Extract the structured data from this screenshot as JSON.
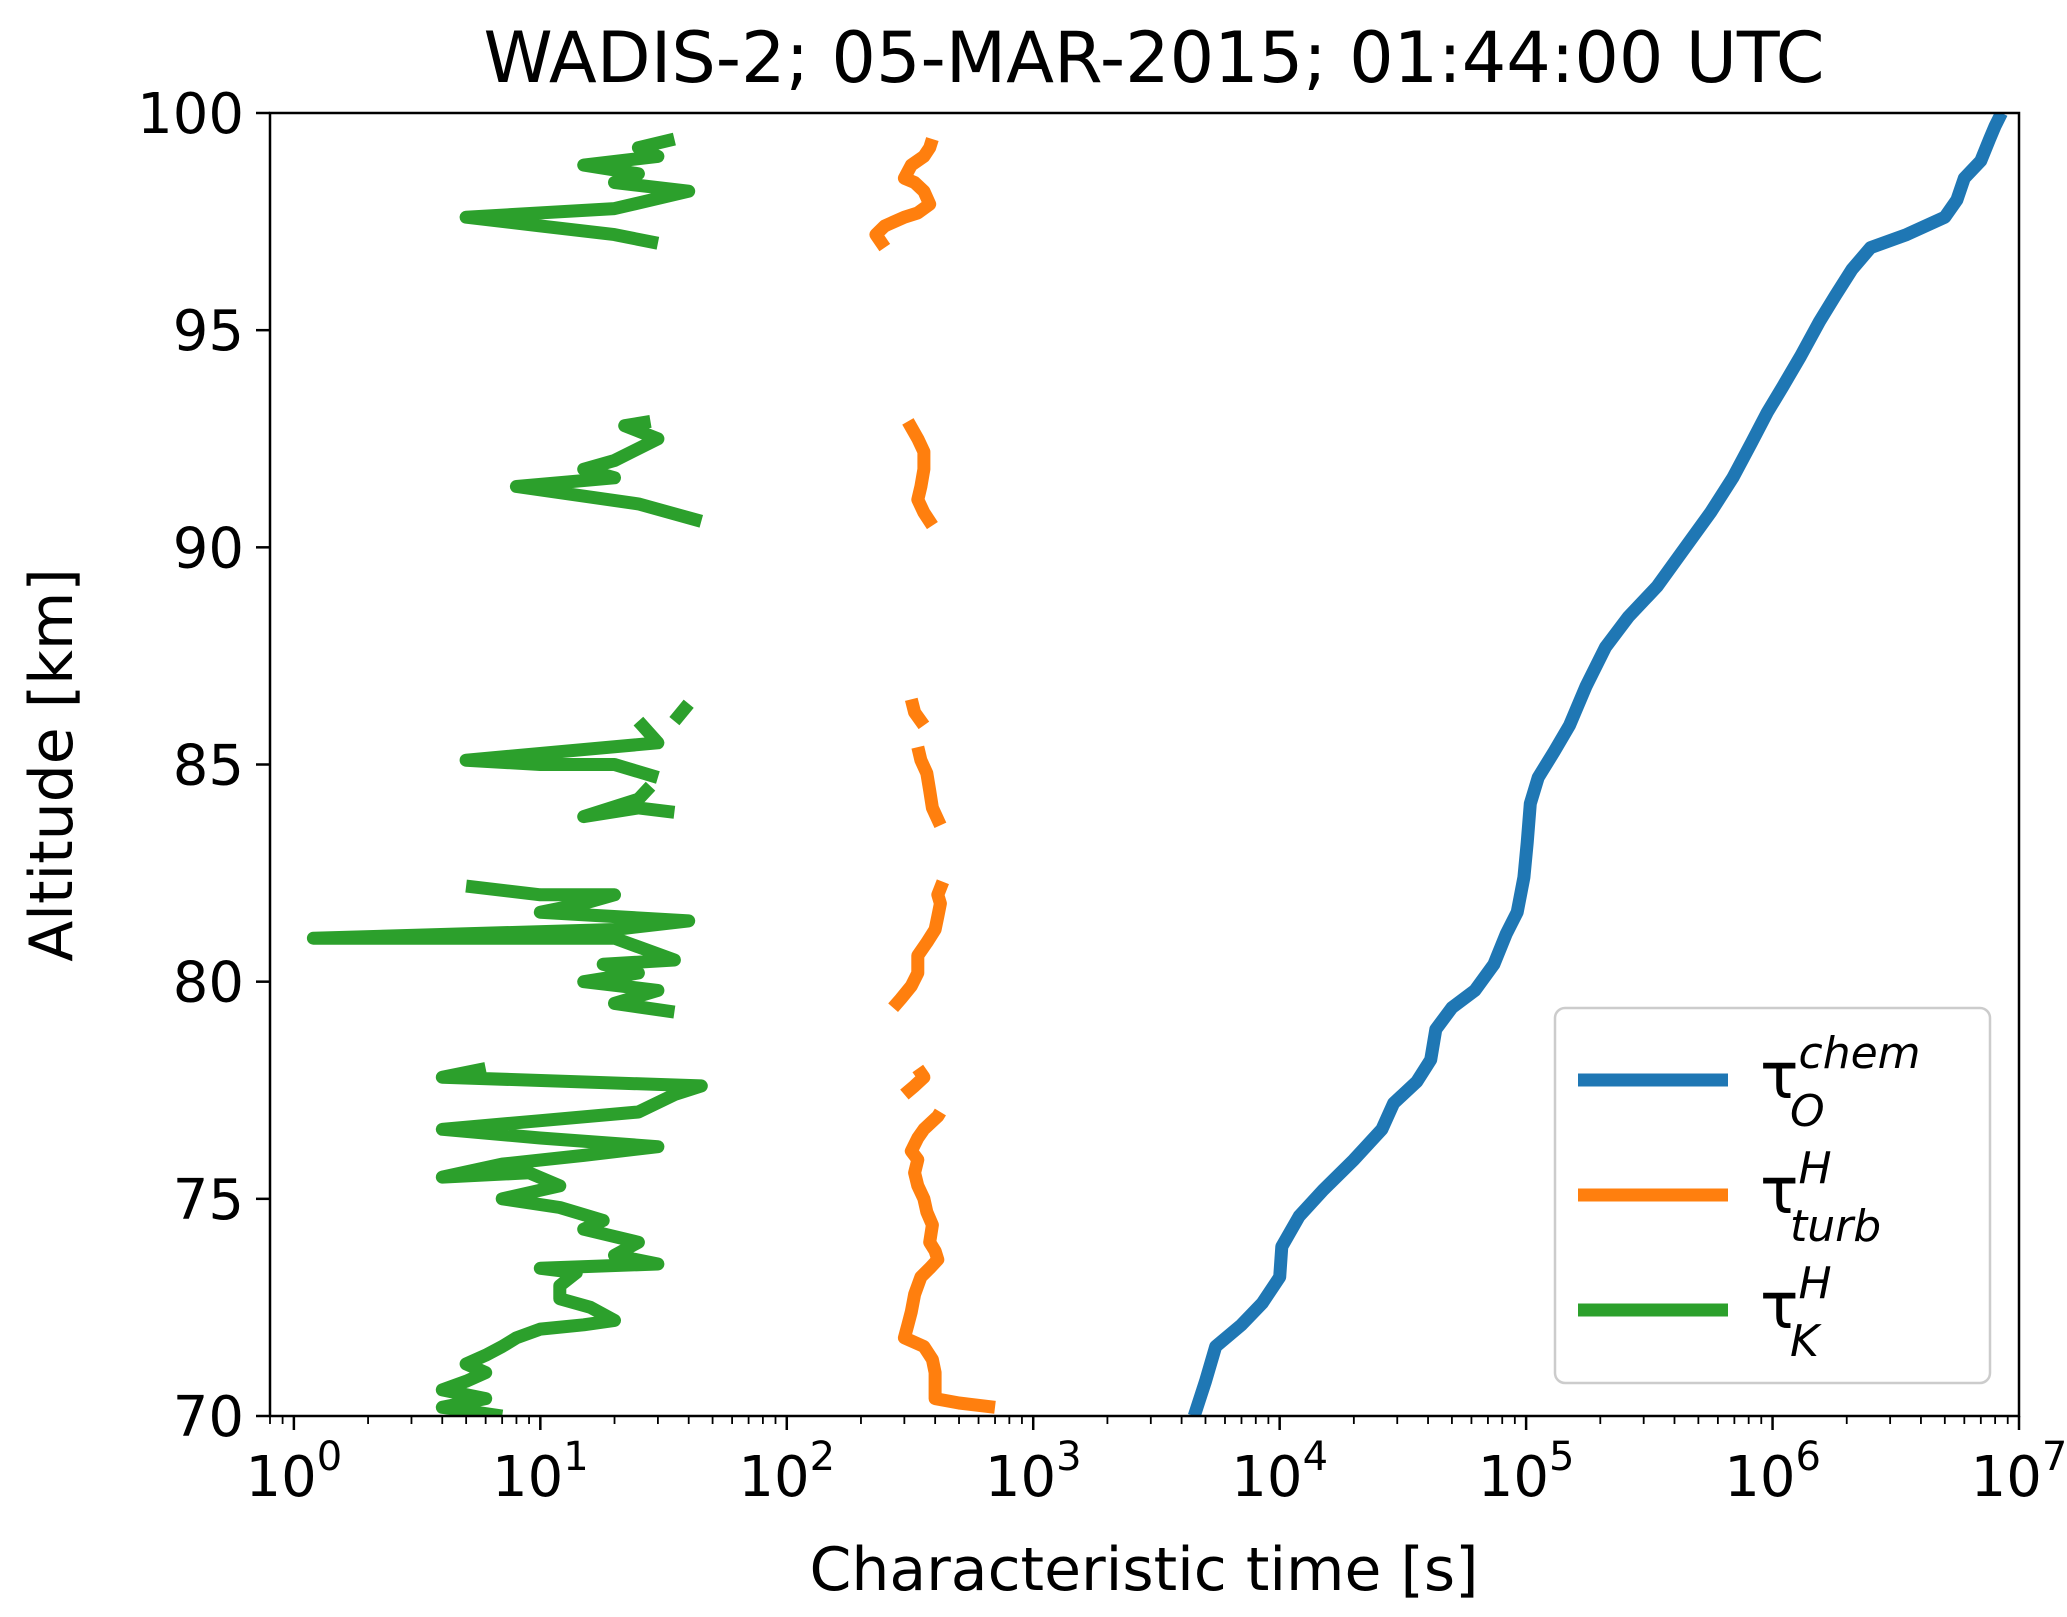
{
  "chart_data": {
    "type": "line",
    "title": "WADIS-2; 05-MAR-2015; 01:44:00 UTC",
    "xlabel": "Characteristic time [s]",
    "ylabel": "Altitude [km]",
    "xscale": "log",
    "xlim": [
      0.8,
      10000000
    ],
    "ylim": [
      70,
      100
    ],
    "x_ticks": [
      {
        "value": 1,
        "base": "10",
        "exp": "0"
      },
      {
        "value": 10,
        "base": "10",
        "exp": "1"
      },
      {
        "value": 100,
        "base": "10",
        "exp": "2"
      },
      {
        "value": 1000,
        "base": "10",
        "exp": "3"
      },
      {
        "value": 10000,
        "base": "10",
        "exp": "4"
      },
      {
        "value": 100000,
        "base": "10",
        "exp": "5"
      },
      {
        "value": 1000000,
        "base": "10",
        "exp": "6"
      },
      {
        "value": 10000000,
        "base": "10",
        "exp": "7"
      }
    ],
    "y_ticks": [
      70,
      75,
      80,
      85,
      90,
      95,
      100
    ],
    "y_tick_labels": [
      "70",
      "75",
      "80",
      "85",
      "90",
      "95",
      "100"
    ],
    "grid": false,
    "legend_position": "bottom-right",
    "series": [
      {
        "key": "tau_chem",
        "legend": {
          "symbol": "τ",
          "sup": "chem",
          "sub": "O"
        },
        "color": "#1f77b4",
        "segments": [
          [
            [
              4500,
              70.0
            ],
            [
              5000,
              70.8
            ],
            [
              5500,
              71.6
            ],
            [
              7000,
              72.1
            ],
            [
              8500,
              72.6
            ],
            [
              10000,
              73.2
            ],
            [
              10200,
              73.9
            ],
            [
              12000,
              74.6
            ],
            [
              15000,
              75.2
            ],
            [
              20000,
              75.9
            ],
            [
              26000,
              76.6
            ],
            [
              29000,
              77.2
            ],
            [
              36000,
              77.7
            ],
            [
              41000,
              78.2
            ],
            [
              43000,
              78.9
            ],
            [
              50000,
              79.4
            ],
            [
              62000,
              79.8
            ],
            [
              74000,
              80.4
            ],
            [
              83000,
              81.1
            ],
            [
              92000,
              81.6
            ],
            [
              98000,
              82.4
            ],
            [
              101000,
              83.2
            ],
            [
              104000,
              84.1
            ],
            [
              112000,
              84.7
            ],
            [
              130000,
              85.3
            ],
            [
              150000,
              85.9
            ],
            [
              175000,
              86.8
            ],
            [
              210000,
              87.7
            ],
            [
              260000,
              88.4
            ],
            [
              340000,
              89.1
            ],
            [
              430000,
              89.9
            ],
            [
              560000,
              90.8
            ],
            [
              690000,
              91.6
            ],
            [
              820000,
              92.4
            ],
            [
              950000,
              93.1
            ],
            [
              1100000,
              93.7
            ],
            [
              1300000,
              94.4
            ],
            [
              1550000,
              95.2
            ],
            [
              1800000,
              95.8
            ],
            [
              2100000,
              96.4
            ],
            [
              2500000,
              96.9
            ],
            [
              3500000,
              97.2
            ],
            [
              5000000,
              97.6
            ],
            [
              5600000,
              98.0
            ],
            [
              6000000,
              98.5
            ],
            [
              7000000,
              98.9
            ],
            [
              7600000,
              99.4
            ],
            [
              8000000,
              99.7
            ],
            [
              8500000,
              100.0
            ]
          ]
        ]
      },
      {
        "key": "tau_turb",
        "legend": {
          "symbol": "τ",
          "sup": "H",
          "sub": "turb"
        },
        "color": "#ff7f0e",
        "segments": [
          [
            [
              700,
              70.2
            ],
            [
              500,
              70.3
            ],
            [
              400,
              70.4
            ],
            [
              400,
              71.0
            ],
            [
              390,
              71.3
            ],
            [
              360,
              71.6
            ],
            [
              300,
              71.8
            ],
            [
              310,
              72.1
            ],
            [
              320,
              72.4
            ],
            [
              330,
              72.8
            ],
            [
              350,
              73.2
            ],
            [
              380,
              73.4
            ],
            [
              410,
              73.6
            ],
            [
              400,
              73.8
            ],
            [
              380,
              74.0
            ],
            [
              390,
              74.4
            ],
            [
              370,
              74.7
            ],
            [
              360,
              75.0
            ],
            [
              340,
              75.3
            ],
            [
              330,
              75.6
            ],
            [
              340,
              75.9
            ],
            [
              320,
              76.1
            ],
            [
              340,
              76.4
            ],
            [
              360,
              76.6
            ],
            [
              410,
              76.9
            ],
            [
              420,
              77.0
            ]
          ],
          [
            [
              300,
              77.4
            ],
            [
              330,
              77.6
            ],
            [
              360,
              77.8
            ],
            [
              340,
              78.0
            ]
          ],
          [
            [
              270,
              79.4
            ],
            [
              290,
              79.6
            ],
            [
              320,
              79.9
            ],
            [
              340,
              80.2
            ],
            [
              340,
              80.6
            ],
            [
              370,
              80.9
            ],
            [
              400,
              81.2
            ],
            [
              410,
              81.5
            ],
            [
              420,
              81.8
            ],
            [
              410,
              82.0
            ],
            [
              430,
              82.3
            ]
          ],
          [
            [
              420,
              83.6
            ],
            [
              390,
              84.0
            ],
            [
              380,
              84.4
            ],
            [
              370,
              84.8
            ],
            [
              350,
              85.1
            ],
            [
              340,
              85.4
            ]
          ],
          [
            [
              360,
              85.9
            ],
            [
              330,
              86.2
            ],
            [
              320,
              86.5
            ]
          ],
          [
            [
              390,
              90.5
            ],
            [
              360,
              90.8
            ],
            [
              340,
              91.1
            ],
            [
              350,
              91.4
            ],
            [
              360,
              91.8
            ],
            [
              360,
              92.2
            ],
            [
              340,
              92.5
            ],
            [
              310,
              92.9
            ]
          ],
          [
            [
              250,
              96.9
            ],
            [
              230,
              97.2
            ],
            [
              250,
              97.4
            ],
            [
              300,
              97.6
            ],
            [
              340,
              97.7
            ],
            [
              380,
              97.9
            ],
            [
              360,
              98.2
            ],
            [
              330,
              98.4
            ],
            [
              300,
              98.5
            ],
            [
              320,
              98.8
            ],
            [
              360,
              99.0
            ],
            [
              380,
              99.2
            ],
            [
              390,
              99.4
            ]
          ]
        ]
      },
      {
        "key": "tau_K",
        "legend": {
          "symbol": "τ",
          "sup": "H",
          "sub": "K"
        },
        "color": "#2ca02c",
        "segments": [
          [
            [
              7,
              70.0
            ],
            [
              4,
              70.2
            ],
            [
              6,
              70.4
            ],
            [
              4,
              70.6
            ],
            [
              5,
              70.8
            ],
            [
              6,
              71.0
            ],
            [
              5,
              71.2
            ],
            [
              6,
              71.4
            ],
            [
              7,
              71.6
            ],
            [
              8,
              71.8
            ],
            [
              10,
              72.0
            ],
            [
              15,
              72.1
            ],
            [
              20,
              72.2
            ],
            [
              16,
              72.5
            ],
            [
              12,
              72.7
            ],
            [
              12,
              73.0
            ],
            [
              14,
              73.3
            ],
            [
              10,
              73.4
            ],
            [
              30,
              73.5
            ],
            [
              20,
              73.7
            ],
            [
              25,
              74.0
            ],
            [
              15,
              74.3
            ],
            [
              18,
              74.5
            ],
            [
              12,
              74.8
            ],
            [
              7,
              75.0
            ],
            [
              12,
              75.3
            ],
            [
              9,
              75.6
            ],
            [
              4,
              75.5
            ],
            [
              7,
              75.8
            ],
            [
              15,
              76.0
            ],
            [
              30,
              76.2
            ],
            [
              10,
              76.4
            ],
            [
              4,
              76.6
            ],
            [
              10,
              76.8
            ],
            [
              25,
              77.0
            ],
            [
              35,
              77.4
            ],
            [
              45,
              77.6
            ],
            [
              4,
              77.8
            ],
            [
              6,
              78.0
            ]
          ],
          [
            [
              35,
              79.3
            ],
            [
              20,
              79.5
            ],
            [
              30,
              79.8
            ],
            [
              15,
              80.0
            ],
            [
              25,
              80.2
            ],
            [
              18,
              80.4
            ],
            [
              35,
              80.5
            ],
            [
              25,
              80.8
            ],
            [
              20,
              81.0
            ],
            [
              1.2,
              81.0
            ],
            [
              20,
              81.2
            ],
            [
              40,
              81.4
            ],
            [
              10,
              81.6
            ],
            [
              15,
              81.8
            ],
            [
              20,
              82.0
            ],
            [
              10,
              82.0
            ],
            [
              5,
              82.2
            ]
          ],
          [
            [
              35,
              83.9
            ],
            [
              25,
              84.0
            ],
            [
              15,
              83.8
            ],
            [
              25,
              84.2
            ],
            [
              28,
              84.5
            ]
          ],
          [
            [
              30,
              84.7
            ],
            [
              20,
              85.0
            ],
            [
              10,
              85.0
            ],
            [
              5,
              85.1
            ],
            [
              30,
              85.5
            ],
            [
              25,
              86.0
            ]
          ],
          [
            [
              35,
              86.0
            ],
            [
              40,
              86.4
            ]
          ],
          [
            [
              45,
              90.6
            ],
            [
              25,
              91.0
            ],
            [
              8,
              91.4
            ],
            [
              20,
              91.6
            ],
            [
              15,
              91.8
            ],
            [
              20,
              92.0
            ],
            [
              30,
              92.5
            ],
            [
              22,
              92.8
            ],
            [
              28,
              92.9
            ]
          ],
          [
            [
              30,
              97.0
            ],
            [
              20,
              97.2
            ],
            [
              10,
              97.4
            ],
            [
              5,
              97.6
            ],
            [
              20,
              97.8
            ],
            [
              40,
              98.2
            ],
            [
              20,
              98.4
            ],
            [
              25,
              98.6
            ],
            [
              15,
              98.8
            ],
            [
              30,
              99.0
            ],
            [
              25,
              99.2
            ],
            [
              35,
              99.4
            ]
          ]
        ]
      }
    ]
  }
}
